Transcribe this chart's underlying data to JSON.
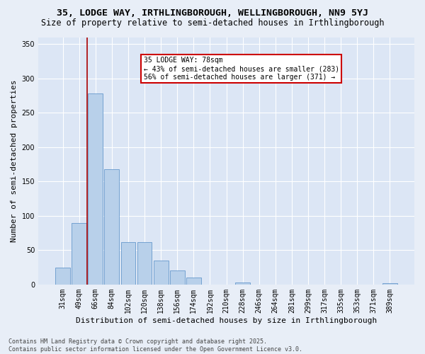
{
  "title": "35, LODGE WAY, IRTHLINGBOROUGH, WELLINGBOROUGH, NN9 5YJ",
  "subtitle": "Size of property relative to semi-detached houses in Irthlingborough",
  "xlabel": "Distribution of semi-detached houses by size in Irthlingborough",
  "ylabel": "Number of semi-detached properties",
  "categories": [
    "31sqm",
    "49sqm",
    "66sqm",
    "84sqm",
    "102sqm",
    "120sqm",
    "138sqm",
    "156sqm",
    "174sqm",
    "192sqm",
    "210sqm",
    "228sqm",
    "246sqm",
    "264sqm",
    "281sqm",
    "299sqm",
    "317sqm",
    "335sqm",
    "353sqm",
    "371sqm",
    "389sqm"
  ],
  "values": [
    25,
    90,
    278,
    168,
    62,
    62,
    35,
    20,
    10,
    0,
    0,
    3,
    0,
    0,
    0,
    0,
    0,
    0,
    0,
    0,
    2
  ],
  "bar_color": "#b8d0ea",
  "bar_edge_color": "#6699cc",
  "vline_color": "#aa0000",
  "annotation_line1": "35 LODGE WAY: 78sqm",
  "annotation_line2": "← 43% of semi-detached houses are smaller (283)",
  "annotation_line3": "56% of semi-detached houses are larger (371) →",
  "annotation_box_color": "#cc0000",
  "background_color": "#e8eef7",
  "plot_bg_color": "#dce6f5",
  "footer": "Contains HM Land Registry data © Crown copyright and database right 2025.\nContains public sector information licensed under the Open Government Licence v3.0.",
  "ylim": [
    0,
    360
  ],
  "yticks": [
    0,
    50,
    100,
    150,
    200,
    250,
    300,
    350
  ],
  "title_fontsize": 9.5,
  "subtitle_fontsize": 8.5,
  "axis_label_fontsize": 8,
  "tick_fontsize": 7,
  "footer_fontsize": 6,
  "annotation_fontsize": 7
}
